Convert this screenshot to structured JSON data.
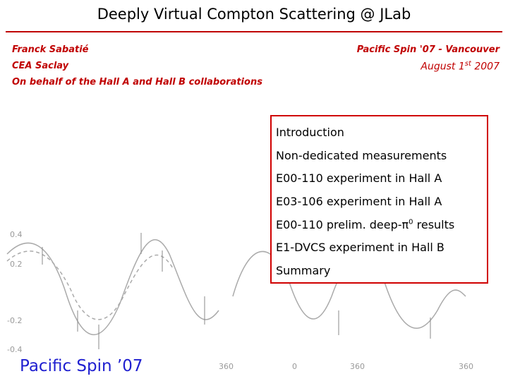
{
  "header": {
    "title": "Deeply Virtual Compton Scattering @ JLab"
  },
  "author": {
    "name": "Franck Sabatié",
    "institution": "CEA Saclay",
    "affiliation": "On behalf of the Hall A and Hall B collaborations"
  },
  "event": {
    "name": "Pacific Spin '07 - Vancouver",
    "date_before": "August 1",
    "date_sup": "st",
    "date_after": "2007"
  },
  "outline": {
    "items": [
      {
        "text": "Introduction"
      },
      {
        "text": "Non-dedicated measurements"
      },
      {
        "text": "E00-110 experiment in Hall A"
      },
      {
        "text": "E03-106 experiment in Hall A"
      },
      {
        "text": "E00-110 prelim. deep-π",
        "sup": "0",
        "after": "results"
      },
      {
        "text": "E1-DVCS experiment in Hall B"
      },
      {
        "text": "Summary"
      }
    ]
  },
  "background_plot": {
    "y_labels": [
      "0.4",
      "0.2",
      "-0.2",
      "-0.4"
    ],
    "x_labels": [
      "360",
      "0",
      "360",
      "360"
    ]
  },
  "footer": {
    "text": "Pacific Spin ’07"
  }
}
